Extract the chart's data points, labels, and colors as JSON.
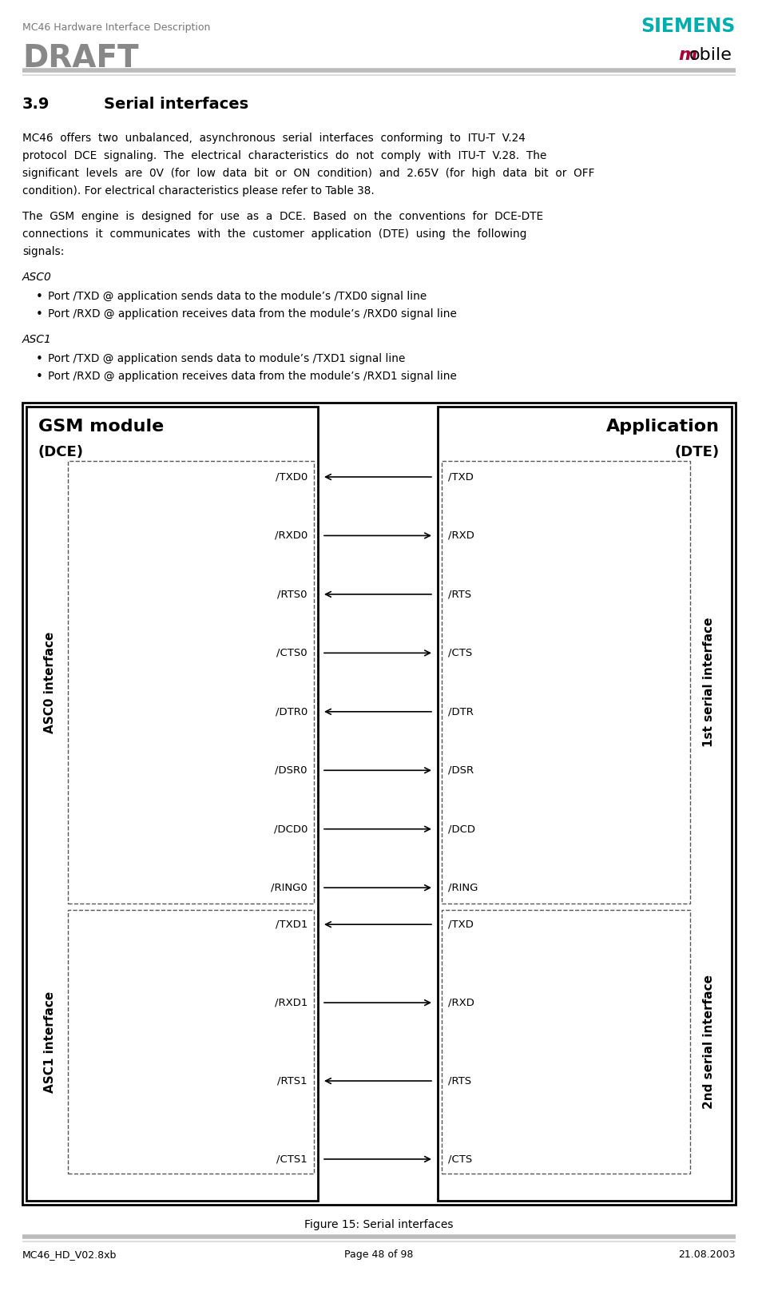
{
  "header_text": "MC46 Hardware Interface Description",
  "draft_text": "DRAFT",
  "siemens_text": "SIEMENS",
  "mobile_text": "mobile",
  "siemens_color": "#00AEAE",
  "mobile_m_color": "#AA003A",
  "footer_left": "MC46_HD_V02.8xb",
  "footer_center": "Page 48 of 98",
  "footer_right": "21.08.2003",
  "section_number": "3.9",
  "section_name": "Serial interfaces",
  "para1_lines": [
    "MC46  offers  two  unbalanced,  asynchronous  serial  interfaces  conforming  to  ITU-T  V.24",
    "protocol  DCE  signaling.  The  electrical  characteristics  do  not  comply  with  ITU-T  V.28.  The",
    "significant  levels  are  0V  (for  low  data  bit  or  ON  condition)  and  2.65V  (for  high  data  bit  or  OFF",
    "condition). For electrical characteristics please refer to Table 38."
  ],
  "para2_lines": [
    "The  GSM  engine  is  designed  for  use  as  a  DCE.  Based  on  the  conventions  for  DCE-DTE",
    "connections  it  communicates  with  the  customer  application  (DTE)  using  the  following",
    "signals:"
  ],
  "asc0_title": "ASC0",
  "asc0_bullets": [
    "Port /TXD @ application sends data to the module’s /TXD0 signal line",
    "Port /RXD @ application receives data from the module’s /RXD0 signal line"
  ],
  "asc1_title": "ASC1",
  "asc1_bullets": [
    "Port /TXD @ application sends data to module’s /TXD1 signal line",
    "Port /RXD @ application receives data from the module’s /RXD1 signal line"
  ],
  "fig_caption": "Figure 15: Serial interfaces",
  "gsm_title": "GSM module",
  "gsm_subtitle": "(DCE)",
  "app_title": "Application",
  "app_subtitle": "(DTE)",
  "asc0_label": "ASC0 interface",
  "asc1_label": "ASC1 interface",
  "first_serial_label": "1st serial interface",
  "second_serial_label": "2nd serial interface",
  "asc0_signals_left": [
    "/TXD0",
    "/RXD0",
    "/RTS0",
    "/CTS0",
    "/DTR0",
    "/DSR0",
    "/DCD0",
    "/RING0"
  ],
  "asc1_signals_left": [
    "/TXD1",
    "/RXD1",
    "/RTS1",
    "/CTS1"
  ],
  "asc0_signals_right": [
    "/TXD",
    "/RXD",
    "/RTS",
    "/CTS",
    "/DTR",
    "/DSR",
    "/DCD",
    "/RING"
  ],
  "asc1_signals_right": [
    "/TXD",
    "/RXD",
    "/RTS",
    "/CTS"
  ],
  "arrow_directions_asc0": [
    "left",
    "right",
    "left",
    "right",
    "left",
    "right",
    "right",
    "right"
  ],
  "arrow_directions_asc1": [
    "left",
    "right",
    "left",
    "right"
  ]
}
